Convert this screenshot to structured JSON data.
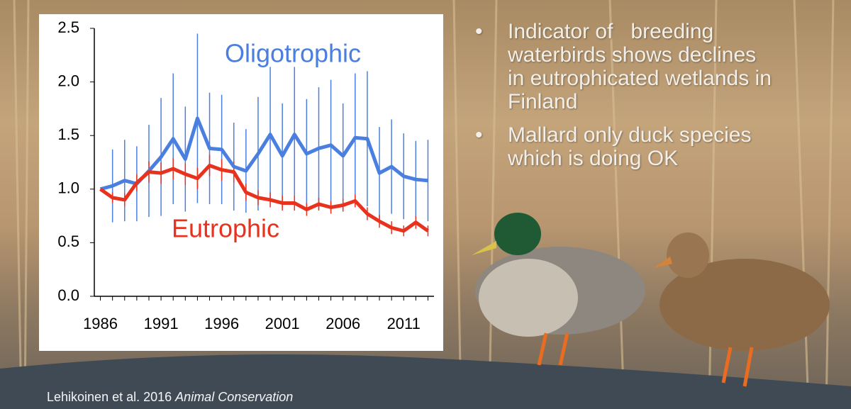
{
  "chart_data": {
    "type": "line",
    "x": [
      1986,
      1987,
      1988,
      1989,
      1990,
      1991,
      1992,
      1993,
      1994,
      1995,
      1996,
      1997,
      1998,
      1999,
      2000,
      2001,
      2002,
      2003,
      2004,
      2005,
      2006,
      2007,
      2008,
      2009,
      2010,
      2011,
      2012,
      2013
    ],
    "series": [
      {
        "name": "Oligotrophic",
        "color": "#4a7fe0",
        "values": [
          1.0,
          1.03,
          1.08,
          1.05,
          1.17,
          1.3,
          1.47,
          1.28,
          1.66,
          1.38,
          1.37,
          1.21,
          1.17,
          1.33,
          1.51,
          1.31,
          1.51,
          1.33,
          1.38,
          1.41,
          1.31,
          1.48,
          1.47,
          1.15,
          1.21,
          1.12,
          1.09,
          1.08
        ],
        "errors": [
          0,
          0.34,
          0.38,
          0.35,
          0.43,
          0.55,
          0.61,
          0.49,
          0.79,
          0.52,
          0.51,
          0.41,
          0.39,
          0.53,
          0.63,
          0.49,
          0.63,
          0.51,
          0.57,
          0.61,
          0.49,
          0.6,
          0.63,
          0.43,
          0.44,
          0.4,
          0.36,
          0.38
        ]
      },
      {
        "name": "Eutrophic",
        "color": "#e8321e",
        "values": [
          1.0,
          0.92,
          0.9,
          1.06,
          1.16,
          1.15,
          1.19,
          1.14,
          1.1,
          1.22,
          1.18,
          1.16,
          0.97,
          0.92,
          0.9,
          0.87,
          0.87,
          0.81,
          0.86,
          0.83,
          0.85,
          0.89,
          0.77,
          0.7,
          0.64,
          0.61,
          0.69,
          0.61
        ],
        "errors": [
          0,
          0.05,
          0.06,
          0.08,
          0.1,
          0.1,
          0.1,
          0.1,
          0.1,
          0.1,
          0.1,
          0.1,
          0.08,
          0.07,
          0.07,
          0.07,
          0.07,
          0.06,
          0.06,
          0.06,
          0.06,
          0.06,
          0.06,
          0.06,
          0.06,
          0.05,
          0.06,
          0.05
        ]
      }
    ],
    "xlim": [
      1985.5,
      2013.5
    ],
    "xticks": [
      1986,
      1991,
      1996,
      2001,
      2006,
      2011
    ],
    "ylim": [
      0,
      2.5
    ],
    "yticks": [
      {
        "value": 0,
        "label": "0.0"
      },
      0.5,
      {
        "value": 1,
        "label": "1.0"
      },
      1.5,
      {
        "value": 2,
        "label": "2.0"
      },
      2.5
    ],
    "grid": false
  },
  "slide": {
    "bullets": [
      "Indicator of   breeding waterbirds shows declines in eutrophicated wetlands in Finland",
      "Mallard only duck species which is doing OK"
    ],
    "citation": {
      "text": "Lehikoinen et al. 2016",
      "journal": "Animal Conservation"
    }
  }
}
